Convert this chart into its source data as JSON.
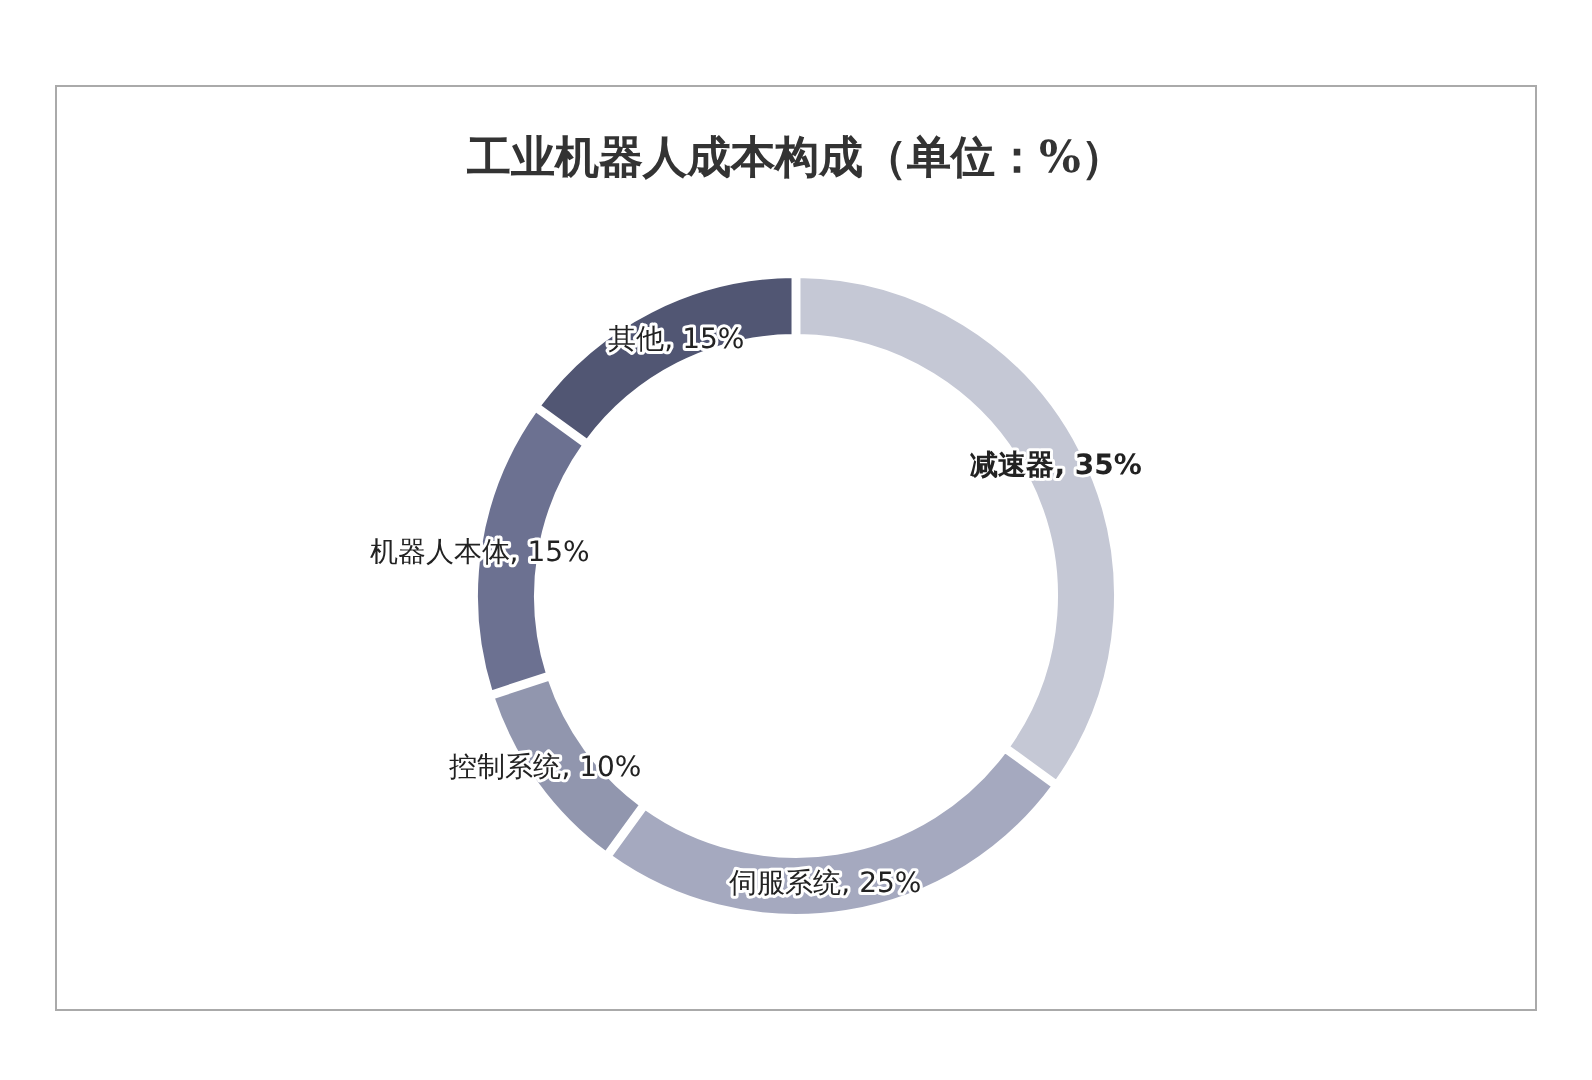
{
  "chart_data": {
    "type": "donut",
    "title": "工业机器人成本构成（单位：%）",
    "categories": [
      "减速器",
      "伺服系统",
      "控制系统",
      "机器人本体",
      "其他"
    ],
    "values": [
      35,
      25,
      10,
      15,
      15
    ],
    "colors": [
      "#c5c8d5",
      "#a5a9bf",
      "#9196ae",
      "#6c7191",
      "#515673"
    ],
    "value_labels": [
      ", 35%",
      ", 25%",
      ", 10%",
      ", 15%",
      ", 15%"
    ]
  }
}
